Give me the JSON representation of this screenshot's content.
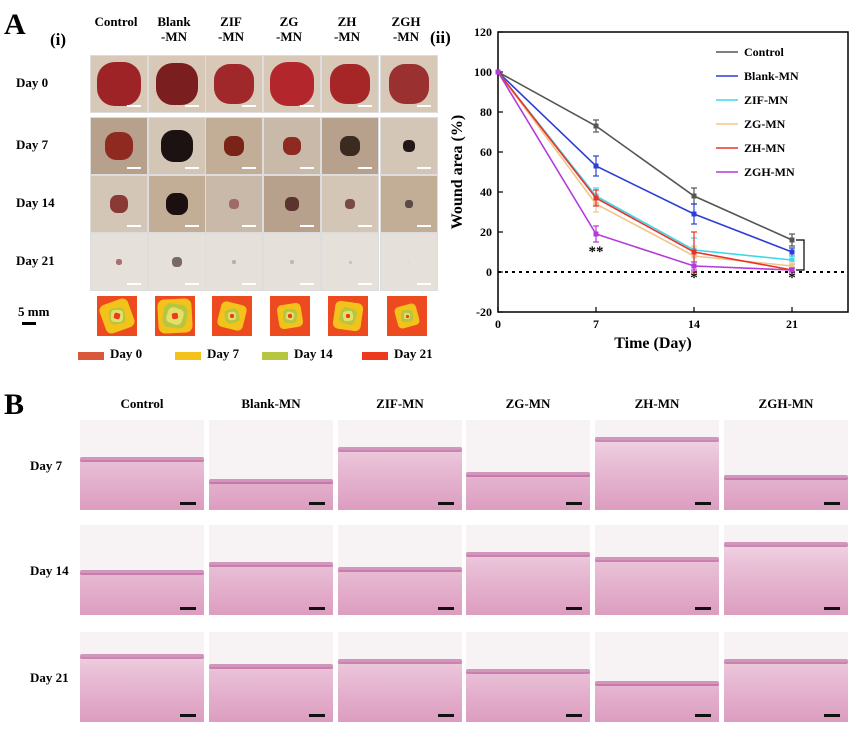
{
  "panel_a": {
    "letter": "A",
    "sub_i": "(i)",
    "sub_ii": "(ii)",
    "col_headers": [
      [
        "Control",
        ""
      ],
      [
        "Blank",
        "-MN"
      ],
      [
        "ZIF",
        "-MN"
      ],
      [
        "ZG",
        "-MN"
      ],
      [
        "ZH",
        "-MN"
      ],
      [
        "ZGH",
        "-MN"
      ]
    ],
    "row_labels": [
      "Day 0",
      "Day 7",
      "Day 14",
      "Day 21"
    ],
    "scale_label": "5 mm",
    "schematic_legend": [
      {
        "label": "Day 0",
        "color": "#d9573a"
      },
      {
        "label": "Day 7",
        "color": "#f3c21b"
      },
      {
        "label": "Day 14",
        "color": "#b6c640"
      },
      {
        "label": "Day 21",
        "color": "#ee3a1c"
      }
    ]
  },
  "panel_b": {
    "letter": "B",
    "col_headers": [
      "Control",
      "Blank-MN",
      "ZIF-MN",
      "ZG-MN",
      "ZH-MN",
      "ZGH-MN"
    ],
    "row_labels": [
      "Day 7",
      "Day 14",
      "Day 21"
    ]
  },
  "chart_data": {
    "type": "line",
    "xlabel": "Time  (Day)",
    "ylabel": "Wound area  (%)",
    "x": [
      0,
      7,
      14,
      21
    ],
    "xticks": [
      0,
      7,
      14,
      21
    ],
    "yticks": [
      -20,
      0,
      20,
      40,
      60,
      80,
      100,
      120
    ],
    "ylim": [
      -20,
      120
    ],
    "xlim": [
      0,
      25
    ],
    "legend_position": "top-right",
    "series": [
      {
        "name": "Control",
        "color": "#555555",
        "values": [
          100,
          73,
          38,
          16
        ],
        "err": [
          0,
          3,
          4,
          3
        ]
      },
      {
        "name": "Blank-MN",
        "color": "#2b3fd6",
        "values": [
          100,
          53,
          29,
          10
        ],
        "err": [
          0,
          5,
          5,
          2
        ]
      },
      {
        "name": "ZIF-MN",
        "color": "#3fd8e8",
        "values": [
          100,
          38,
          11,
          6
        ],
        "err": [
          0,
          4,
          6,
          2
        ]
      },
      {
        "name": "ZG-MN",
        "color": "#f2c58a",
        "values": [
          100,
          34,
          8,
          3
        ],
        "err": [
          0,
          4,
          5,
          2
        ]
      },
      {
        "name": "ZH-MN",
        "color": "#e8332a",
        "values": [
          100,
          37,
          10,
          1
        ],
        "err": [
          0,
          4,
          10,
          1
        ]
      },
      {
        "name": "ZGH-MN",
        "color": "#b53bd8",
        "values": [
          100,
          19,
          3,
          1
        ],
        "err": [
          0,
          4,
          2,
          1
        ]
      }
    ],
    "annotations": [
      "**",
      "*",
      "*"
    ]
  }
}
